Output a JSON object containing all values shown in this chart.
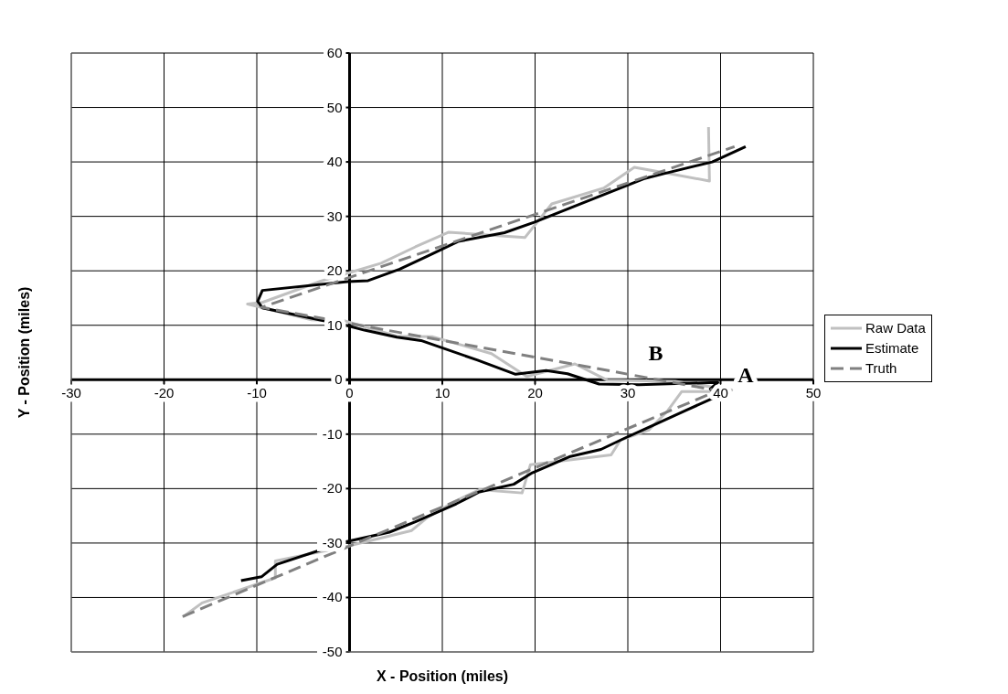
{
  "chart_data": {
    "type": "line",
    "xlabel": "X - Position (miles)",
    "ylabel": "Y - Position (miles)",
    "xlim": [
      -30,
      50
    ],
    "xticks": [
      -30,
      -20,
      -10,
      0,
      10,
      20,
      30,
      40,
      50
    ],
    "ylim": [
      -50,
      60
    ],
    "yticks": [
      -50,
      -40,
      -30,
      -20,
      -10,
      0,
      10,
      20,
      30,
      40,
      50,
      60
    ],
    "grid": true,
    "legend": "right",
    "marker": "none",
    "series": [
      {
        "name": "Raw Data",
        "color": "#c0c0c0",
        "line_style": "solid",
        "x": [
          -17.9,
          -15.9,
          -8.0,
          -8.0,
          -0.5,
          6.7,
          8.4,
          11.3,
          14.0,
          18.6,
          19.5,
          28.2,
          29.2,
          32.3,
          34.3,
          35.8,
          38.9,
          41.2,
          35.1,
          27.8,
          24.3,
          19.1,
          15.3,
          8.9,
          5.1,
          -0.5,
          -4.1,
          -11.0,
          -9.4,
          -3.1,
          3.4,
          7.1,
          10.7,
          13.8,
          18.9,
          21.8,
          27.4,
          30.7,
          34.0,
          38.8,
          38.7
        ],
        "values": [
          -43.5,
          -41.0,
          -36.4,
          -33.3,
          -30.7,
          -27.7,
          -25.3,
          -22.4,
          -20.2,
          -20.8,
          -15.6,
          -13.8,
          -11.1,
          -9.2,
          -5.7,
          -2.2,
          -2.2,
          -1.9,
          -0.3,
          -0.1,
          2.9,
          0.6,
          4.8,
          7.9,
          8.0,
          10.8,
          11.0,
          13.9,
          14.2,
          18.1,
          21.4,
          24.4,
          27.1,
          26.7,
          26.1,
          32.3,
          35.2,
          39.0,
          38.0,
          36.5,
          46.4
        ]
      },
      {
        "name": "Estimate",
        "color": "#000000",
        "line_style": "solid",
        "x": [
          -11.7,
          -9.5,
          -7.8,
          -0.5,
          4.3,
          7.1,
          11.5,
          14.0,
          17.7,
          19.7,
          23.8,
          27.1,
          29.7,
          32.3,
          36.3,
          39.7,
          38.9,
          39.7,
          31.2,
          26.9,
          23.5,
          21.2,
          17.9,
          13.8,
          7.7,
          5.1,
          1.6,
          -0.2,
          -9.4,
          -9.9,
          -9.4,
          -0.2,
          2.0,
          5.4,
          8.4,
          11.7,
          16.7,
          19.9,
          27.4,
          31.7,
          34.0,
          39.1,
          42.7
        ],
        "values": [
          -36.9,
          -36.2,
          -33.9,
          -29.8,
          -28.0,
          -26.1,
          -22.8,
          -20.6,
          -19.2,
          -17.1,
          -14.1,
          -12.8,
          -10.7,
          -8.7,
          -5.6,
          -3.0,
          -1.7,
          -0.5,
          -0.9,
          -0.8,
          1.1,
          1.7,
          1.0,
          3.6,
          7.2,
          7.8,
          9.1,
          9.9,
          13.2,
          14.4,
          16.4,
          18.0,
          18.2,
          20.3,
          22.7,
          25.4,
          27.0,
          28.9,
          34.0,
          36.9,
          37.9,
          40.0,
          42.8
        ]
      },
      {
        "name": "Truth",
        "color": "#808080",
        "line_style": "dashed",
        "x": [
          -18.0,
          39.7,
          -9.5,
          41.5
        ],
        "values": [
          -43.5,
          -2.0,
          13.3,
          42.8
        ]
      }
    ],
    "annotations": [
      {
        "text": "A",
        "x": 42.7,
        "y": 0.9
      },
      {
        "text": "B",
        "x": 33.0,
        "y": 4.9
      }
    ]
  }
}
